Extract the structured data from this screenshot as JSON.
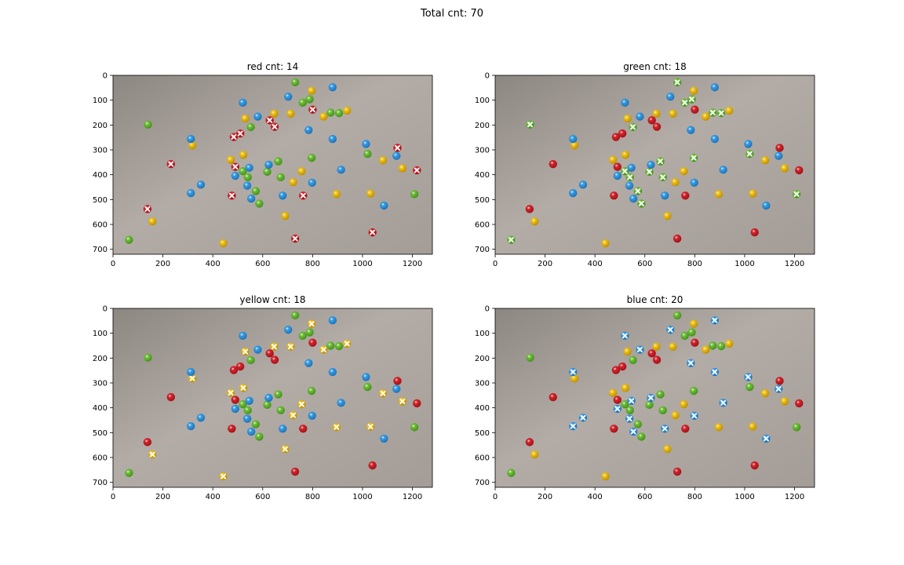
{
  "figure_title": "Total cnt: 70",
  "chart_data": [
    {
      "type": "scatter",
      "title": "red cnt: 14",
      "marker_color": "#ffffff",
      "xlim": [
        0,
        1280
      ],
      "ylim": [
        720,
        0
      ],
      "xticks": [
        "0",
        "200",
        "400",
        "600",
        "800",
        "1000",
        "1200"
      ],
      "yticks": [
        "0",
        "100",
        "200",
        "300",
        "400",
        "500",
        "600",
        "700"
      ],
      "series": [
        {
          "values": [
            [
              138,
              538
            ],
            [
              232,
              357
            ],
            [
              484,
              248
            ],
            [
              510,
              234
            ],
            [
              628,
              181
            ],
            [
              648,
              207
            ],
            [
              490,
              368
            ],
            [
              476,
              484
            ],
            [
              762,
              484
            ],
            [
              800,
              138
            ],
            [
              1140,
              292
            ],
            [
              1218,
              382
            ],
            [
              730,
              657
            ],
            [
              1040,
              632
            ]
          ]
        }
      ]
    },
    {
      "type": "scatter",
      "title": "green cnt: 18",
      "marker_color": "#ffffff",
      "xlim": [
        0,
        1280
      ],
      "ylim": [
        720,
        0
      ],
      "xticks": [
        "0",
        "200",
        "400",
        "600",
        "800",
        "1000",
        "1200"
      ],
      "yticks": [
        "0",
        "100",
        "200",
        "300",
        "400",
        "500",
        "600",
        "700"
      ],
      "series": [
        {
          "values": [
            [
              730,
              28
            ],
            [
              760,
              110
            ],
            [
              788,
              96
            ],
            [
              872,
              150
            ],
            [
              906,
              152
            ],
            [
              140,
              198
            ],
            [
              552,
              208
            ],
            [
              520,
              386
            ],
            [
              540,
              410
            ],
            [
              618,
              388
            ],
            [
              662,
              346
            ],
            [
              672,
              410
            ],
            [
              796,
              332
            ],
            [
              1020,
              316
            ],
            [
              572,
              466
            ],
            [
              586,
              516
            ],
            [
              1208,
              478
            ],
            [
              64,
              662
            ]
          ]
        }
      ]
    },
    {
      "type": "scatter",
      "title": "yellow cnt: 18",
      "marker_color": "#ffffff",
      "xlim": [
        0,
        1280
      ],
      "ylim": [
        720,
        0
      ],
      "xticks": [
        "0",
        "200",
        "400",
        "600",
        "800",
        "1000",
        "1200"
      ],
      "yticks": [
        "0",
        "100",
        "200",
        "300",
        "400",
        "500",
        "600",
        "700"
      ],
      "series": [
        {
          "values": [
            [
              796,
              62
            ],
            [
              938,
              142
            ],
            [
              646,
              154
            ],
            [
              712,
              154
            ],
            [
              844,
              166
            ],
            [
              530,
              174
            ],
            [
              318,
              282
            ],
            [
              522,
              320
            ],
            [
              472,
              340
            ],
            [
              1082,
              342
            ],
            [
              1160,
              374
            ],
            [
              756,
              386
            ],
            [
              722,
              430
            ],
            [
              896,
              478
            ],
            [
              1032,
              476
            ],
            [
              690,
              566
            ],
            [
              158,
              588
            ],
            [
              442,
              676
            ]
          ]
        }
      ]
    },
    {
      "type": "scatter",
      "title": "blue cnt: 20",
      "marker_color": "#ffffff",
      "xlim": [
        0,
        1280
      ],
      "ylim": [
        720,
        0
      ],
      "xticks": [
        "0",
        "200",
        "400",
        "600",
        "800",
        "1000",
        "1200"
      ],
      "yticks": [
        "0",
        "100",
        "200",
        "300",
        "400",
        "500",
        "600",
        "700"
      ],
      "series": [
        {
          "values": [
            [
              880,
              48
            ],
            [
              702,
              86
            ],
            [
              520,
              110
            ],
            [
              580,
              166
            ],
            [
              784,
              220
            ],
            [
              312,
              256
            ],
            [
              880,
              256
            ],
            [
              1014,
              276
            ],
            [
              1136,
              324
            ],
            [
              624,
              360
            ],
            [
              546,
              372
            ],
            [
              914,
              380
            ],
            [
              490,
              404
            ],
            [
              352,
              440
            ],
            [
              538,
              444
            ],
            [
              798,
              432
            ],
            [
              312,
              474
            ],
            [
              554,
              496
            ],
            [
              680,
              484
            ],
            [
              1086,
              524
            ]
          ]
        }
      ]
    }
  ]
}
